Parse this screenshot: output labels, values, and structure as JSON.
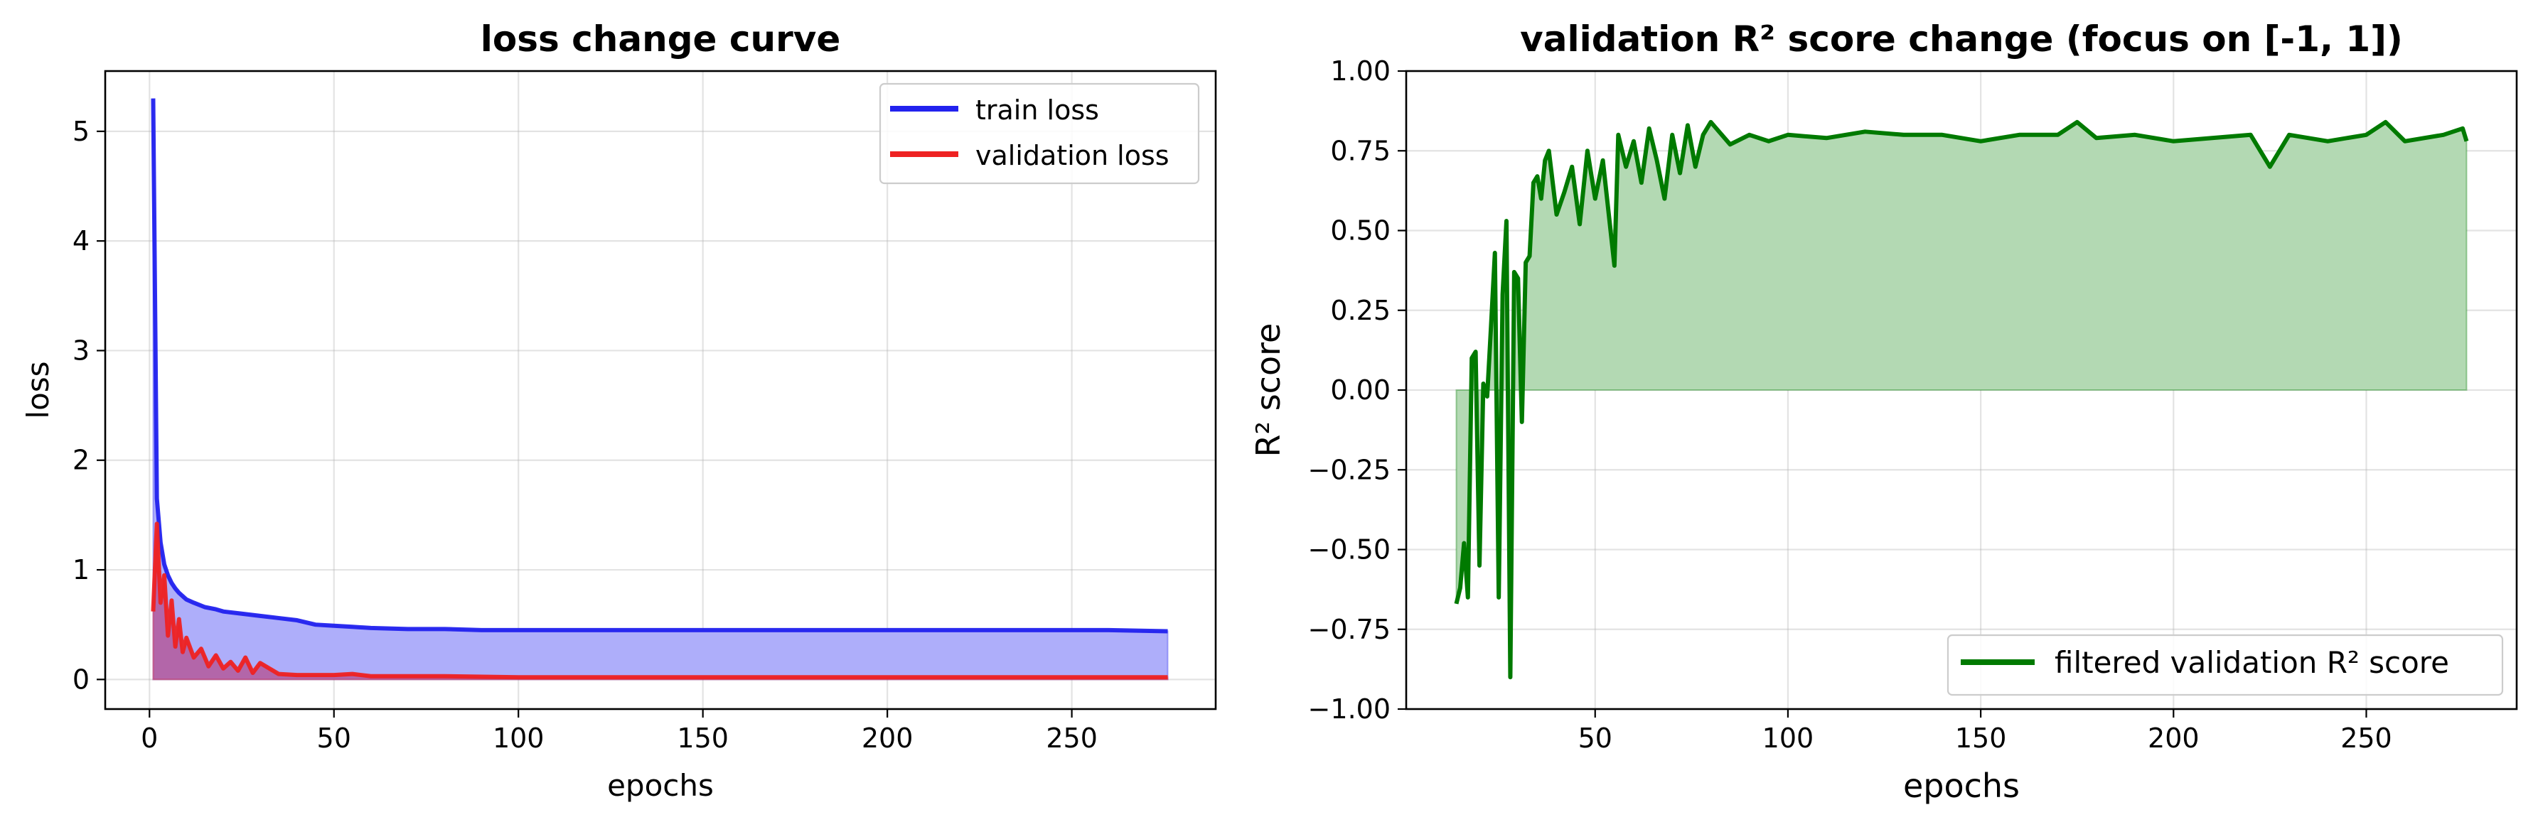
{
  "colors": {
    "train": "#2222ee",
    "train_fill": "#aeaefa",
    "validation": "#ee2222",
    "validation_fill": "#b4599a",
    "r2": "#007a00",
    "r2_fill": "#b3d9b3"
  },
  "chart_data": [
    {
      "type": "line",
      "title": "loss change curve",
      "xlabel": "epochs",
      "ylabel": "loss",
      "xlim": [
        -12,
        289
      ],
      "ylim": [
        -0.27,
        5.55
      ],
      "xticks": [
        0,
        50,
        100,
        150,
        200,
        250
      ],
      "xtick_labels": [
        "0",
        "50",
        "100",
        "150",
        "200",
        "250"
      ],
      "yticks": [
        0,
        1,
        2,
        3,
        4,
        5
      ],
      "ytick_labels": [
        "0",
        "1",
        "2",
        "3",
        "4",
        "5"
      ],
      "grid": true,
      "legend_position": "upper-right",
      "fill_under": true,
      "series": [
        {
          "name": "train loss",
          "x": [
            1,
            2,
            3,
            4,
            5,
            6,
            7,
            8,
            10,
            12,
            15,
            18,
            20,
            25,
            30,
            35,
            40,
            45,
            50,
            55,
            60,
            70,
            80,
            90,
            100,
            120,
            140,
            160,
            180,
            200,
            220,
            240,
            260,
            276
          ],
          "values": [
            5.3,
            1.65,
            1.25,
            1.05,
            0.95,
            0.88,
            0.83,
            0.79,
            0.73,
            0.7,
            0.66,
            0.64,
            0.62,
            0.6,
            0.58,
            0.56,
            0.54,
            0.5,
            0.49,
            0.48,
            0.47,
            0.46,
            0.46,
            0.45,
            0.45,
            0.45,
            0.45,
            0.45,
            0.45,
            0.45,
            0.45,
            0.45,
            0.45,
            0.44
          ]
        },
        {
          "name": "validation loss",
          "x": [
            1,
            2,
            3,
            4,
            5,
            6,
            7,
            8,
            9,
            10,
            12,
            14,
            16,
            18,
            20,
            22,
            24,
            26,
            28,
            30,
            35,
            40,
            45,
            50,
            55,
            60,
            80,
            100,
            150,
            200,
            250,
            276
          ],
          "values": [
            0.62,
            1.42,
            0.7,
            0.95,
            0.4,
            0.72,
            0.3,
            0.55,
            0.25,
            0.38,
            0.2,
            0.28,
            0.12,
            0.22,
            0.1,
            0.16,
            0.08,
            0.2,
            0.06,
            0.15,
            0.05,
            0.04,
            0.04,
            0.04,
            0.05,
            0.03,
            0.03,
            0.02,
            0.02,
            0.02,
            0.02,
            0.02
          ]
        }
      ]
    },
    {
      "type": "line",
      "title": "validation R² score change (focus on [-1, 1])",
      "xlabel": "epochs",
      "ylabel": "R² score",
      "xlim": [
        1,
        289
      ],
      "ylim": [
        -1.0,
        1.0
      ],
      "xticks": [
        50,
        100,
        150,
        200,
        250
      ],
      "xtick_labels": [
        "50",
        "100",
        "150",
        "200",
        "250"
      ],
      "yticks": [
        -1.0,
        -0.75,
        -0.5,
        -0.25,
        0.0,
        0.25,
        0.5,
        0.75,
        1.0
      ],
      "ytick_labels": [
        "−1.00",
        "−0.75",
        "−0.50",
        "−0.25",
        "0.00",
        "0.25",
        "0.50",
        "0.75",
        "1.00"
      ],
      "grid": true,
      "legend_position": "lower-right",
      "fill_to_zero": true,
      "series": [
        {
          "name": "filtered validation R² score",
          "x": [
            14,
            15,
            16,
            17,
            18,
            19,
            20,
            21,
            22,
            23,
            24,
            25,
            26,
            27,
            28,
            29,
            30,
            31,
            32,
            33,
            34,
            35,
            36,
            37,
            38,
            40,
            42,
            44,
            46,
            48,
            50,
            52,
            54,
            55,
            56,
            58,
            60,
            62,
            64,
            66,
            68,
            70,
            72,
            74,
            76,
            78,
            80,
            85,
            90,
            95,
            100,
            110,
            120,
            130,
            140,
            150,
            160,
            170,
            175,
            180,
            190,
            200,
            210,
            220,
            225,
            230,
            240,
            250,
            255,
            260,
            270,
            275,
            276
          ],
          "values": [
            -0.67,
            -0.62,
            -0.48,
            -0.65,
            0.1,
            0.12,
            -0.55,
            0.02,
            -0.02,
            0.2,
            0.43,
            -0.65,
            0.3,
            0.53,
            -0.9,
            0.37,
            0.35,
            -0.1,
            0.4,
            0.42,
            0.65,
            0.67,
            0.6,
            0.72,
            0.75,
            0.55,
            0.62,
            0.7,
            0.52,
            0.75,
            0.6,
            0.72,
            0.5,
            0.39,
            0.8,
            0.7,
            0.78,
            0.65,
            0.82,
            0.72,
            0.6,
            0.8,
            0.68,
            0.83,
            0.7,
            0.8,
            0.84,
            0.77,
            0.8,
            0.78,
            0.8,
            0.79,
            0.81,
            0.8,
            0.8,
            0.78,
            0.8,
            0.8,
            0.84,
            0.79,
            0.8,
            0.78,
            0.79,
            0.8,
            0.7,
            0.8,
            0.78,
            0.8,
            0.84,
            0.78,
            0.8,
            0.82,
            0.78
          ]
        }
      ]
    }
  ]
}
